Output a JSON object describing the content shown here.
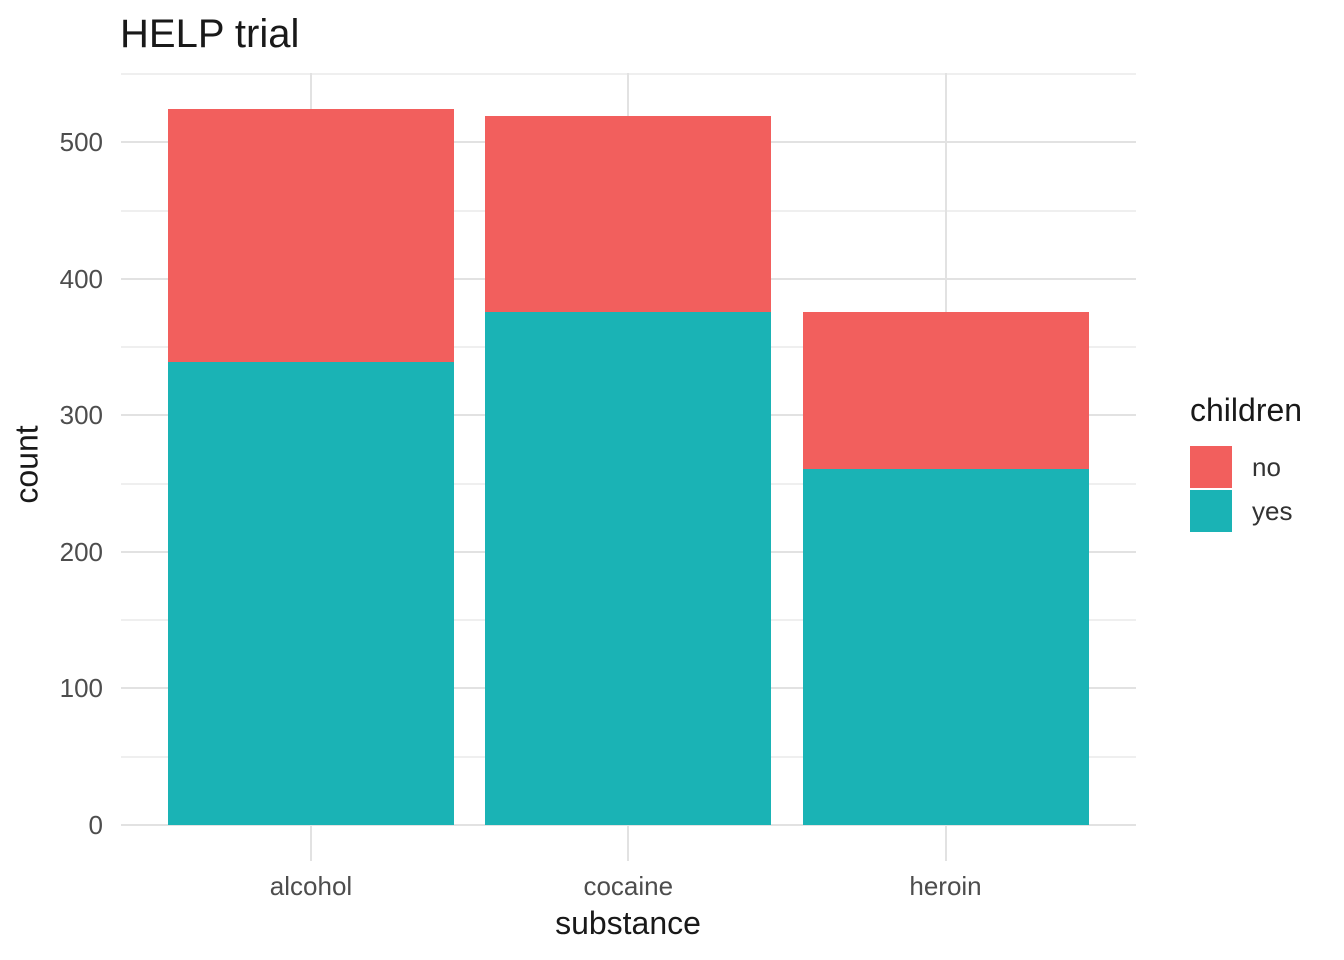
{
  "chart_data": {
    "type": "bar",
    "stacked": true,
    "title": "HELP trial",
    "xlabel": "substance",
    "ylabel": "count",
    "categories": [
      "alcohol",
      "cocaine",
      "heroin"
    ],
    "series": [
      {
        "name": "no",
        "color": "#F25F5D",
        "values": [
          185,
          143,
          115
        ]
      },
      {
        "name": "yes",
        "color": "#1AB3B5",
        "values": [
          339,
          376,
          261
        ]
      }
    ],
    "stack_bottom_to_top": [
      "yes",
      "no"
    ],
    "stack_totals": [
      524,
      519,
      376
    ],
    "y_ticks": [
      0,
      100,
      200,
      300,
      400,
      500
    ],
    "y_minor_ticks": [
      50,
      150,
      250,
      350,
      450,
      550
    ],
    "ylim": [
      0,
      577
    ],
    "grid": "major+minor horizontal, major vertical at category centers",
    "legend": {
      "title": "children",
      "position": "right",
      "entries": [
        "no",
        "yes"
      ]
    },
    "colors": {
      "background": "#FFFFFF",
      "grid_major": "#E2E2E2",
      "grid_minor": "#EFEFEF",
      "tick_label": "#4D4D4D",
      "text": "#191919"
    }
  }
}
